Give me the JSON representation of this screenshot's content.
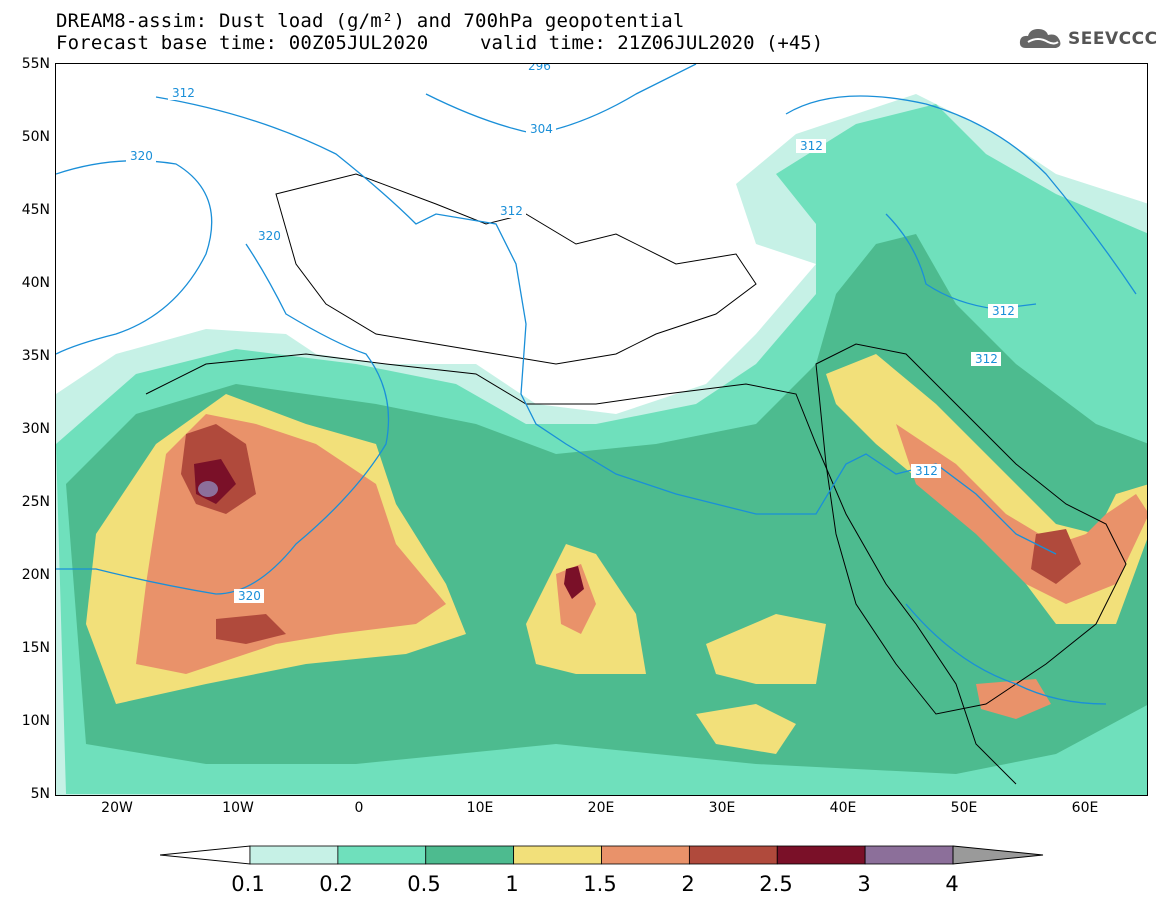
{
  "header": {
    "title_line1": "DREAM8-assim: Dust load (g/m²) and 700hPa geopotential",
    "title_line2": "Forecast base time: 00Z05JUL2020",
    "valid_time": "valid time: 21Z06JUL2020 (+45)",
    "logo_text": "SEEVCCC"
  },
  "axes": {
    "lat_labels": [
      "55N",
      "50N",
      "45N",
      "40N",
      "35N",
      "30N",
      "25N",
      "20N",
      "15N",
      "10N",
      "5N"
    ],
    "lon_labels": [
      "20W",
      "10W",
      "0",
      "10E",
      "20E",
      "30E",
      "40E",
      "50E",
      "60E"
    ]
  },
  "contours": {
    "labels": [
      "312",
      "312",
      "320",
      "320",
      "320",
      "304",
      "312",
      "312",
      "312",
      "312",
      "312",
      "296"
    ],
    "color": "#1a8fd8"
  },
  "colorbar": {
    "levels": [
      "0.1",
      "0.2",
      "0.5",
      "1",
      "1.5",
      "2",
      "2.5",
      "3",
      "4"
    ],
    "colors": [
      "#c6f1e6",
      "#6fe0bc",
      "#4dbb8f",
      "#f2e07a",
      "#e9926a",
      "#b04a3c",
      "#7a1028",
      "#8c6f9a",
      "#9a9a9a"
    ],
    "under_color": "#ffffff"
  }
}
